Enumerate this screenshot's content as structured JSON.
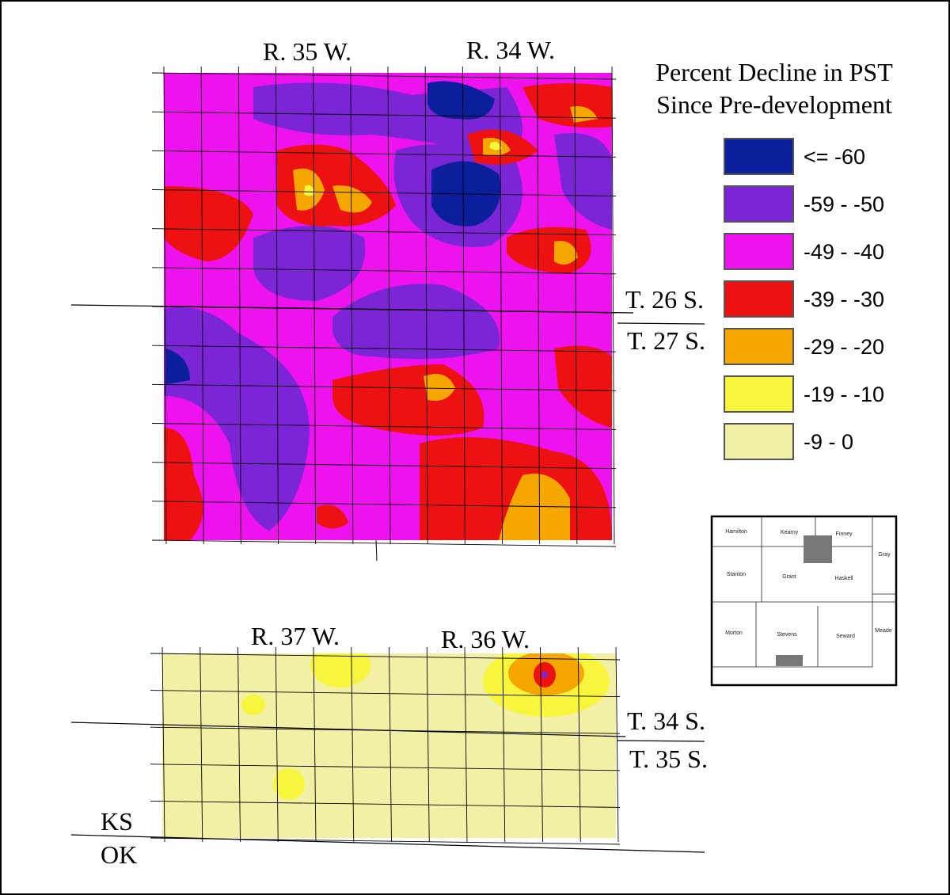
{
  "legend": {
    "title_lines": [
      "Percent Decline in PST",
      "Since Pre-development"
    ],
    "items": [
      {
        "label": "<= -60",
        "color": "#0b1f9c"
      },
      {
        "label": "-59 - -50",
        "color": "#7c25d6"
      },
      {
        "label": "-49 - -40",
        "color": "#ee12ee"
      },
      {
        "label": "-39 - -30",
        "color": "#ee1111"
      },
      {
        "label": "-29 - -20",
        "color": "#f5a700"
      },
      {
        "label": "-19 - -10",
        "color": "#f7f53c"
      },
      {
        "label": "-9 - 0",
        "color": "#f2f0a4"
      }
    ]
  },
  "top_map": {
    "ranges": [
      "R. 35 W.",
      "R. 34 W."
    ],
    "townships": [
      "T. 26 S.",
      "T. 27 S."
    ]
  },
  "bottom_map": {
    "ranges": [
      "R. 37 W.",
      "R. 36 W."
    ],
    "townships": [
      "T. 34 S.",
      "T. 35 S."
    ]
  },
  "states": [
    "KS",
    "OK"
  ],
  "inset": {
    "counties": [
      "Hamilton",
      "Kearny",
      "Finney",
      "Gray",
      "Stanton",
      "Grant",
      "Haskell",
      "Morton",
      "Stevens",
      "Seward",
      "Meade"
    ]
  }
}
